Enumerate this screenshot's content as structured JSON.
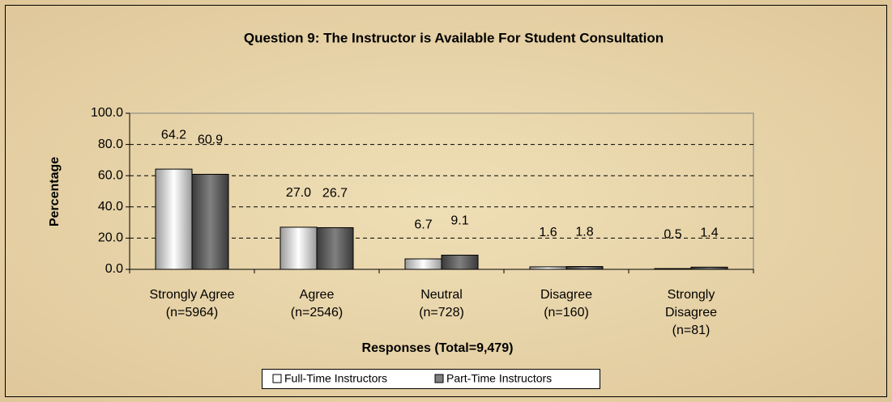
{
  "chart_data": {
    "type": "bar",
    "title": "Question 9:  The Instructor is Available For Student Consultation",
    "x_label": "Responses (Total=9,479)",
    "y_label": "Percentage",
    "categories": [
      [
        "Strongly Agree",
        "(n=5964)"
      ],
      [
        "Agree",
        "(n=2546)"
      ],
      [
        "Neutral",
        "(n=728)"
      ],
      [
        "Disagree",
        "(n=160)"
      ],
      [
        "Strongly",
        "Disagree",
        "(n=81)"
      ]
    ],
    "series": [
      {
        "name": "Full-Time Instructors",
        "color": "#ffffff",
        "values": [
          64.2,
          27.0,
          6.7,
          1.6,
          0.5
        ],
        "value_labels": [
          "64.2",
          "27.0",
          "6.7",
          "1.6",
          "0.5"
        ]
      },
      {
        "name": "Part-Time Instructors",
        "color": "#808080",
        "values": [
          60.9,
          26.7,
          9.1,
          1.8,
          1.4
        ],
        "value_labels": [
          "60.9",
          "26.7",
          "9.1",
          "1.8",
          "1.4"
        ]
      }
    ],
    "ylim": [
      0,
      100
    ],
    "yticks": [
      {
        "value": 0,
        "label": "0.0"
      },
      {
        "value": 20,
        "label": "20.0"
      },
      {
        "value": 40,
        "label": "40.0"
      },
      {
        "value": 60,
        "label": "60.0"
      },
      {
        "value": 80,
        "label": "80.0"
      },
      {
        "value": 100,
        "label": "100.0"
      }
    ],
    "grid": true,
    "legend": "bottom"
  }
}
